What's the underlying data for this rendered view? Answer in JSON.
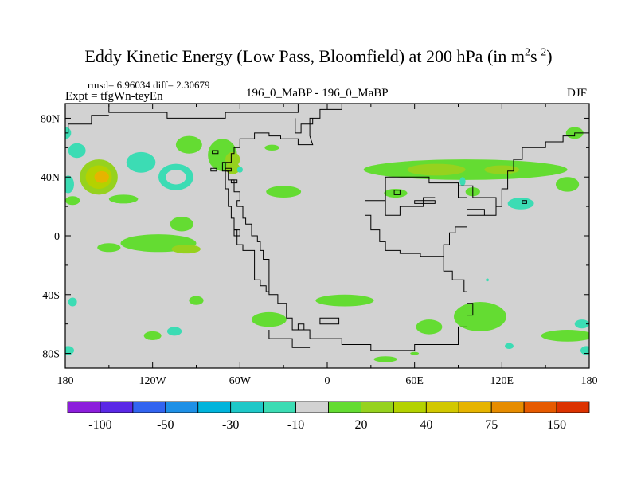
{
  "title": {
    "prefix": "Eddy Kinetic Energy (Low Pass, Bloomfield) at 200 hPa (in m",
    "sup1": "2",
    "mid": "s",
    "sup2": "-2",
    "suffix": ")"
  },
  "header": {
    "stats": "rmsd= 6.96034 diff= 2.30679",
    "expt": "Expt = tfgWn-teyEn",
    "center_label": "196_0_MaBP - 196_0_MaBP",
    "season": "DJF"
  },
  "chart_data": {
    "type": "heatmap",
    "variable": "Eddy Kinetic Energy difference",
    "units": "m2 s-2",
    "level": "200 hPa",
    "xlim": [
      -180,
      180
    ],
    "ylim": [
      -90,
      90
    ],
    "x_ticks": [
      {
        "value": -180,
        "label": "180"
      },
      {
        "value": -120,
        "label": "120W"
      },
      {
        "value": -60,
        "label": "60W"
      },
      {
        "value": 0,
        "label": "0"
      },
      {
        "value": 60,
        "label": "60E"
      },
      {
        "value": 120,
        "label": "120E"
      },
      {
        "value": 180,
        "label": "180"
      }
    ],
    "y_ticks": [
      {
        "value": 80,
        "label": "80N"
      },
      {
        "value": 40,
        "label": "40N"
      },
      {
        "value": 0,
        "label": "0"
      },
      {
        "value": -40,
        "label": "40S"
      },
      {
        "value": -80,
        "label": "80S"
      }
    ],
    "colorbar": {
      "colors": [
        "#8c1ddc",
        "#5a28e6",
        "#3264f0",
        "#1e90e6",
        "#00b4dc",
        "#1ec8c8",
        "#3cdcb4",
        "#d2d2d2",
        "#64dc32",
        "#96d21e",
        "#b4d200",
        "#d2c800",
        "#e6b400",
        "#e68c00",
        "#e65a00",
        "#dc3200"
      ],
      "labels": [
        {
          "after_box": 1,
          "text": "-100"
        },
        {
          "after_box": 3,
          "text": "-50"
        },
        {
          "after_box": 5,
          "text": "-30"
        },
        {
          "after_box": 7,
          "text": "-10"
        },
        {
          "after_box": 9,
          "text": "20"
        },
        {
          "after_box": 11,
          "text": "40"
        },
        {
          "after_box": 13,
          "text": "75"
        },
        {
          "after_box": 15,
          "text": "150"
        }
      ]
    },
    "features": [
      {
        "lon": -157,
        "lat": 40,
        "rlon": 13,
        "rlat": 12,
        "level": 9
      },
      {
        "lon": -157,
        "lat": 40,
        "rlon": 9,
        "rlat": 8,
        "level": 10
      },
      {
        "lon": -155,
        "lat": 40,
        "rlon": 5,
        "rlat": 4,
        "level": 12
      },
      {
        "lon": -128,
        "lat": 50,
        "rlon": 10,
        "rlat": 7,
        "level": 6
      },
      {
        "lon": -104,
        "lat": 40,
        "rlon": 12,
        "rlat": 9,
        "level": 6
      },
      {
        "lon": -104,
        "lat": 40,
        "rlon": 7,
        "rlat": 5,
        "level": 7
      },
      {
        "lon": -172,
        "lat": 58,
        "rlon": 6,
        "rlat": 5,
        "level": 6
      },
      {
        "lon": -178,
        "lat": 35,
        "rlon": 4,
        "rlat": 6,
        "level": 6
      },
      {
        "lon": -175,
        "lat": 24,
        "rlon": 5,
        "rlat": 3,
        "level": 8
      },
      {
        "lon": -140,
        "lat": 25,
        "rlon": 10,
        "rlat": 3,
        "level": 8
      },
      {
        "lon": -95,
        "lat": 62,
        "rlon": 9,
        "rlat": 6,
        "level": 8
      },
      {
        "lon": -72,
        "lat": 55,
        "rlon": 10,
        "rlat": 11,
        "level": 8
      },
      {
        "lon": -65,
        "lat": 52,
        "rlon": 5,
        "rlat": 5,
        "level": 9
      },
      {
        "lon": -65,
        "lat": 46,
        "rlon": 5,
        "rlat": 4,
        "level": 9
      },
      {
        "lon": -60,
        "lat": 45,
        "rlon": 2,
        "rlat": 2,
        "level": 6
      },
      {
        "lon": -30,
        "lat": 30,
        "rlon": 12,
        "rlat": 4,
        "level": 8
      },
      {
        "lon": -38,
        "lat": 60,
        "rlon": 5,
        "rlat": 2,
        "level": 8
      },
      {
        "lon": -116,
        "lat": -5,
        "rlon": 26,
        "rlat": 6,
        "level": 8
      },
      {
        "lon": -100,
        "lat": 8,
        "rlon": 8,
        "rlat": 5,
        "level": 8
      },
      {
        "lon": -150,
        "lat": -8,
        "rlon": 8,
        "rlat": 3,
        "level": 8
      },
      {
        "lon": -97,
        "lat": -9,
        "rlon": 10,
        "rlat": 3,
        "level": 9
      },
      {
        "lon": -90,
        "lat": -44,
        "rlon": 5,
        "rlat": 3,
        "level": 8
      },
      {
        "lon": -175,
        "lat": -45,
        "rlon": 3,
        "rlat": 3,
        "level": 6
      },
      {
        "lon": 95,
        "lat": 45,
        "rlon": 70,
        "rlat": 7,
        "level": 8
      },
      {
        "lon": 75,
        "lat": 45,
        "rlon": 20,
        "rlat": 4,
        "level": 9
      },
      {
        "lon": 120,
        "lat": 45,
        "rlon": 12,
        "rlat": 3,
        "level": 9
      },
      {
        "lon": 165,
        "lat": 35,
        "rlon": 8,
        "rlat": 5,
        "level": 8
      },
      {
        "lon": 133,
        "lat": 22,
        "rlon": 9,
        "rlat": 4,
        "level": 6
      },
      {
        "lon": 47,
        "lat": 29,
        "rlon": 8,
        "rlat": 3,
        "level": 8
      },
      {
        "lon": 100,
        "lat": 30,
        "rlon": 5,
        "rlat": 3,
        "level": 8
      },
      {
        "lon": 93,
        "lat": 37,
        "rlon": 2,
        "rlat": 3,
        "level": 6
      },
      {
        "lon": 170,
        "lat": 70,
        "rlon": 6,
        "rlat": 4,
        "level": 8
      },
      {
        "lon": -180,
        "lat": 70,
        "rlon": 4,
        "rlat": 4,
        "level": 6
      },
      {
        "lon": 12,
        "lat": -44,
        "rlon": 20,
        "rlat": 4,
        "level": 8
      },
      {
        "lon": -40,
        "lat": -57,
        "rlon": 12,
        "rlat": 5,
        "level": 8
      },
      {
        "lon": 70,
        "lat": -62,
        "rlon": 9,
        "rlat": 5,
        "level": 8
      },
      {
        "lon": 105,
        "lat": -55,
        "rlon": 18,
        "rlat": 10,
        "level": 8
      },
      {
        "lon": 165,
        "lat": -68,
        "rlon": 18,
        "rlat": 4,
        "level": 8
      },
      {
        "lon": -105,
        "lat": -65,
        "rlon": 5,
        "rlat": 3,
        "level": 6
      },
      {
        "lon": -120,
        "lat": -68,
        "rlon": 6,
        "rlat": 3,
        "level": 8
      },
      {
        "lon": 125,
        "lat": -75,
        "rlon": 3,
        "rlat": 2,
        "level": 6
      },
      {
        "lon": 60,
        "lat": -80,
        "rlon": 3,
        "rlat": 1,
        "level": 8
      },
      {
        "lon": 40,
        "lat": -84,
        "rlon": 8,
        "rlat": 2,
        "level": 8
      },
      {
        "lon": -178,
        "lat": -78,
        "rlon": 4,
        "rlat": 3,
        "level": 6
      },
      {
        "lon": 178,
        "lat": -78,
        "rlon": 4,
        "rlat": 3,
        "level": 6
      },
      {
        "lon": 175,
        "lat": -60,
        "rlon": 5,
        "rlat": 3,
        "level": 6
      },
      {
        "lon": 110,
        "lat": -30,
        "rlon": 1,
        "rlat": 1,
        "level": 6
      }
    ],
    "coastlines": [
      [
        [
          -150,
          90
        ],
        [
          -150,
          84
        ],
        [
          -110,
          84
        ],
        [
          -110,
          80
        ],
        [
          -70,
          80
        ],
        [
          -70,
          84
        ],
        [
          -20,
          84
        ],
        [
          -20,
          90
        ]
      ],
      [
        [
          10,
          90
        ],
        [
          10,
          86
        ],
        [
          -5,
          86
        ],
        [
          -5,
          80
        ],
        [
          -12,
          80
        ],
        [
          -12,
          68
        ],
        [
          -10,
          62
        ],
        [
          -20,
          62
        ],
        [
          -20,
          66
        ],
        [
          -32,
          66
        ],
        [
          -32,
          68
        ],
        [
          -40,
          68
        ],
        [
          -40,
          70
        ],
        [
          -50,
          70
        ],
        [
          -50,
          66
        ],
        [
          -60,
          66
        ],
        [
          -60,
          60
        ],
        [
          -64,
          60
        ],
        [
          -64,
          56
        ],
        [
          -66,
          56
        ],
        [
          -66,
          50
        ],
        [
          -72,
          50
        ],
        [
          -72,
          44
        ],
        [
          -68,
          44
        ],
        [
          -68,
          38
        ],
        [
          -64,
          38
        ],
        [
          -64,
          30
        ],
        [
          -60,
          30
        ],
        [
          -60,
          24
        ],
        [
          -62,
          24
        ],
        [
          -62,
          20
        ],
        [
          -58,
          20
        ],
        [
          -58,
          12
        ],
        [
          -56,
          12
        ],
        [
          -56,
          8
        ],
        [
          -52,
          8
        ],
        [
          -52,
          0
        ],
        [
          -48,
          0
        ],
        [
          -48,
          -4
        ],
        [
          -46,
          -4
        ],
        [
          -46,
          -10
        ],
        [
          -44,
          -10
        ],
        [
          -44,
          -16
        ],
        [
          -40,
          -16
        ],
        [
          -40,
          -24
        ],
        [
          -40,
          -40
        ],
        [
          -34,
          -40
        ],
        [
          -34,
          -46
        ],
        [
          -28,
          -46
        ],
        [
          -28,
          -56
        ],
        [
          -24,
          -56
        ],
        [
          -24,
          -64
        ],
        [
          -12,
          -64
        ],
        [
          -12,
          -70
        ],
        [
          10,
          -70
        ],
        [
          10,
          -74
        ],
        [
          30,
          -74
        ],
        [
          30,
          -78
        ],
        [
          60,
          -78
        ],
        [
          60,
          -74
        ],
        [
          90,
          -74
        ],
        [
          90,
          -62
        ],
        [
          96,
          -62
        ],
        [
          96,
          -54
        ],
        [
          100,
          -54
        ],
        [
          100,
          -46
        ],
        [
          96,
          -46
        ],
        [
          96,
          -38
        ],
        [
          94,
          -38
        ],
        [
          94,
          -30
        ],
        [
          86,
          -30
        ],
        [
          86,
          -24
        ],
        [
          80,
          -24
        ],
        [
          80,
          -14
        ],
        [
          64,
          -14
        ],
        [
          64,
          -12
        ],
        [
          50,
          -12
        ],
        [
          50,
          -10
        ],
        [
          40,
          -10
        ],
        [
          40,
          -4
        ],
        [
          36,
          -4
        ],
        [
          36,
          4
        ],
        [
          30,
          4
        ],
        [
          30,
          14
        ],
        [
          26,
          14
        ],
        [
          26,
          24
        ],
        [
          40,
          24
        ],
        [
          40,
          40
        ],
        [
          70,
          40
        ],
        [
          70,
          36
        ],
        [
          90,
          36
        ],
        [
          90,
          26
        ],
        [
          96,
          26
        ],
        [
          96,
          18
        ],
        [
          108,
          18
        ],
        [
          108,
          14
        ],
        [
          116,
          14
        ],
        [
          116,
          20
        ],
        [
          120,
          20
        ],
        [
          120,
          32
        ],
        [
          124,
          32
        ],
        [
          124,
          44
        ],
        [
          128,
          44
        ],
        [
          128,
          52
        ],
        [
          134,
          52
        ],
        [
          134,
          60
        ],
        [
          150,
          60
        ],
        [
          150,
          64
        ],
        [
          162,
          64
        ],
        [
          162,
          68
        ],
        [
          170,
          68
        ],
        [
          170,
          70
        ],
        [
          180,
          70
        ]
      ],
      [
        [
          -180,
          70
        ],
        [
          -178,
          70
        ],
        [
          -178,
          76
        ],
        [
          -162,
          76
        ],
        [
          -162,
          82
        ],
        [
          -150,
          82
        ]
      ],
      [
        [
          -40,
          -64
        ],
        [
          -40,
          -70
        ],
        [
          -24,
          -70
        ],
        [
          -24,
          -76
        ],
        [
          -12,
          -76
        ]
      ],
      [
        [
          -70,
          50
        ],
        [
          -70,
          40
        ],
        [
          -70,
          32
        ],
        [
          -68,
          32
        ],
        [
          -68,
          20
        ],
        [
          -66,
          20
        ],
        [
          -66,
          12
        ],
        [
          -64,
          12
        ],
        [
          -64,
          4
        ],
        [
          -62,
          4
        ],
        [
          -62,
          -6
        ],
        [
          -58,
          -6
        ],
        [
          -58,
          -10
        ],
        [
          -50,
          -10
        ],
        [
          -50,
          -20
        ],
        [
          -50,
          -30
        ],
        [
          -46,
          -30
        ],
        [
          -46,
          -34
        ],
        [
          -42,
          -34
        ],
        [
          -42,
          -38
        ],
        [
          -40,
          -38
        ]
      ],
      [
        [
          80,
          -14
        ],
        [
          80,
          -6
        ],
        [
          84,
          -6
        ],
        [
          84,
          2
        ],
        [
          88,
          2
        ],
        [
          88,
          6
        ],
        [
          96,
          6
        ],
        [
          96,
          14
        ],
        [
          108,
          14
        ]
      ],
      [
        [
          116,
          20
        ],
        [
          116,
          26
        ],
        [
          100,
          26
        ],
        [
          100,
          34
        ],
        [
          90,
          34
        ],
        [
          90,
          36
        ]
      ],
      [
        [
          -10,
          80
        ],
        [
          -10,
          76
        ],
        [
          -18,
          76
        ],
        [
          -18,
          70
        ],
        [
          -22,
          70
        ],
        [
          -22,
          80
        ]
      ],
      [
        [
          40,
          24
        ],
        [
          40,
          14
        ],
        [
          50,
          14
        ],
        [
          50,
          20
        ],
        [
          66,
          20
        ],
        [
          66,
          26
        ],
        [
          74,
          26
        ]
      ],
      [
        [
          -180,
          -90
        ],
        [
          180,
          -90
        ]
      ]
    ],
    "islands": [
      [
        [
          -79,
          58
        ],
        [
          -79,
          56
        ],
        [
          -75,
          56
        ],
        [
          -75,
          58
        ]
      ],
      [
        [
          -80,
          46
        ],
        [
          -80,
          44
        ],
        [
          -76,
          44
        ],
        [
          -76,
          46
        ]
      ],
      [
        [
          -70,
          46
        ],
        [
          -70,
          44
        ],
        [
          -66,
          44
        ],
        [
          -66,
          46
        ]
      ],
      [
        [
          -66,
          38
        ],
        [
          -66,
          36
        ],
        [
          -62,
          36
        ],
        [
          -62,
          38
        ]
      ],
      [
        [
          -64,
          4
        ],
        [
          -64,
          0
        ],
        [
          -60,
          0
        ],
        [
          -60,
          4
        ]
      ],
      [
        [
          46,
          31
        ],
        [
          46,
          28
        ],
        [
          50,
          28
        ],
        [
          50,
          31
        ]
      ],
      [
        [
          60,
          24
        ],
        [
          60,
          22
        ],
        [
          74,
          22
        ],
        [
          74,
          24
        ]
      ],
      [
        [
          134,
          24
        ],
        [
          134,
          22
        ],
        [
          137,
          22
        ],
        [
          137,
          24
        ]
      ],
      [
        [
          -20,
          -60
        ],
        [
          -20,
          -64
        ],
        [
          -16,
          -64
        ],
        [
          -16,
          -60
        ]
      ],
      [
        [
          -5,
          -56
        ],
        [
          -5,
          -60
        ],
        [
          8,
          -60
        ],
        [
          8,
          -56
        ]
      ]
    ]
  }
}
